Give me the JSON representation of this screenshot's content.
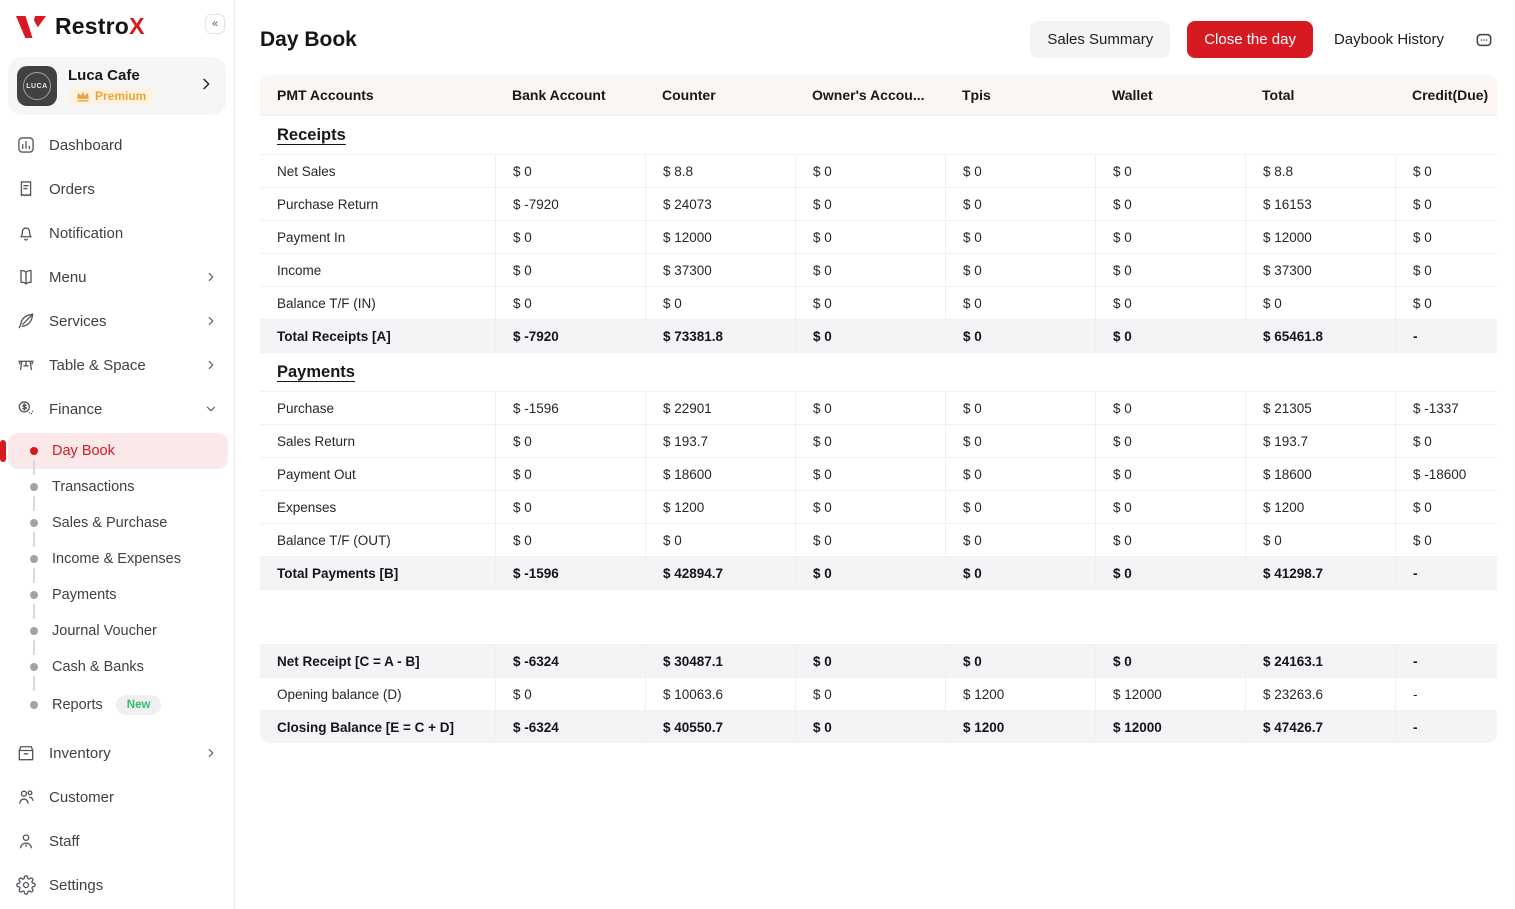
{
  "brand": {
    "name_primary": "Restro",
    "name_accent": "X"
  },
  "colors": {
    "accent": "#d71a21",
    "active_bg": "#fbe8e8",
    "premium": "#f0a23a",
    "total_row_bg": "#f4f4f6",
    "header_row_bg": "#fbf5f4",
    "border": "#f0f0f1",
    "new_green": "#2ec06f"
  },
  "sidebar": {
    "collapse_icon": "«",
    "restaurant": {
      "name": "Luca Cafe",
      "plan": "Premium",
      "avatar_text": "LUCA"
    },
    "items": [
      {
        "label": "Dashboard",
        "icon": "dashboard-icon"
      },
      {
        "label": "Orders",
        "icon": "orders-icon"
      },
      {
        "label": "Notification",
        "icon": "bell-icon"
      },
      {
        "label": "Menu",
        "icon": "menu-book-icon",
        "chevron": "right"
      },
      {
        "label": "Services",
        "icon": "services-feather-icon",
        "chevron": "right"
      },
      {
        "label": "Table & Space",
        "icon": "table-space-icon",
        "chevron": "right"
      },
      {
        "label": "Finance",
        "icon": "finance-coin-icon",
        "chevron": "down"
      }
    ],
    "finance_submenu": [
      {
        "label": "Day Book",
        "active": true
      },
      {
        "label": "Transactions"
      },
      {
        "label": "Sales & Purchase"
      },
      {
        "label": "Income & Expenses"
      },
      {
        "label": "Payments"
      },
      {
        "label": "Journal Voucher"
      },
      {
        "label": "Cash & Banks"
      },
      {
        "label": "Reports",
        "badge": "New"
      }
    ],
    "items_bottom": [
      {
        "label": "Inventory",
        "icon": "inventory-box-icon",
        "chevron": "right"
      },
      {
        "label": "Customer",
        "icon": "customer-icon"
      },
      {
        "label": "Staff",
        "icon": "staff-icon"
      },
      {
        "label": "Settings",
        "icon": "settings-gear-icon"
      }
    ]
  },
  "header": {
    "title": "Day Book",
    "buttons": [
      {
        "label": "Sales Summary",
        "style": "secondary"
      },
      {
        "label": "Close the day",
        "style": "primary"
      },
      {
        "label": "Daybook History",
        "style": "ghost"
      }
    ],
    "more_icon": "ellipsis-box-icon"
  },
  "table": {
    "columns": [
      "PMT Accounts",
      "Bank Account",
      "Counter",
      "Owner's Accou...",
      "Tpis",
      "Wallet",
      "Total",
      "Credit(Due)"
    ],
    "sections": [
      {
        "title": "Receipts",
        "rows": [
          {
            "label": "Net Sales",
            "values": [
              "$ 0",
              "$ 8.8",
              "$ 0",
              "$ 0",
              "$ 0",
              "$ 8.8",
              "$ 0"
            ]
          },
          {
            "label": "Purchase Return",
            "values": [
              "$ -7920",
              "$ 24073",
              "$ 0",
              "$ 0",
              "$ 0",
              "$ 16153",
              "$ 0"
            ]
          },
          {
            "label": "Payment In",
            "values": [
              "$ 0",
              "$ 12000",
              "$ 0",
              "$ 0",
              "$ 0",
              "$ 12000",
              "$ 0"
            ]
          },
          {
            "label": "Income",
            "values": [
              "$ 0",
              "$ 37300",
              "$ 0",
              "$ 0",
              "$ 0",
              "$ 37300",
              "$ 0"
            ]
          },
          {
            "label": "Balance T/F (IN)",
            "values": [
              "$ 0",
              "$ 0",
              "$ 0",
              "$ 0",
              "$ 0",
              "$ 0",
              "$ 0"
            ]
          }
        ],
        "total": {
          "label": "Total Receipts [A]",
          "values": [
            "$ -7920",
            "$ 73381.8",
            "$ 0",
            "$ 0",
            "$ 0",
            "$ 65461.8",
            "-"
          ]
        }
      },
      {
        "title": "Payments",
        "rows": [
          {
            "label": "Purchase",
            "values": [
              "$ -1596",
              "$ 22901",
              "$ 0",
              "$ 0",
              "$ 0",
              "$ 21305",
              "$ -1337"
            ]
          },
          {
            "label": "Sales Return",
            "values": [
              "$ 0",
              "$ 193.7",
              "$ 0",
              "$ 0",
              "$ 0",
              "$ 193.7",
              "$ 0"
            ]
          },
          {
            "label": "Payment Out",
            "values": [
              "$ 0",
              "$ 18600",
              "$ 0",
              "$ 0",
              "$ 0",
              "$ 18600",
              "$ -18600"
            ]
          },
          {
            "label": "Expenses",
            "values": [
              "$ 0",
              "$ 1200",
              "$ 0",
              "$ 0",
              "$ 0",
              "$ 1200",
              "$ 0"
            ]
          },
          {
            "label": "Balance T/F (OUT)",
            "values": [
              "$ 0",
              "$ 0",
              "$ 0",
              "$ 0",
              "$ 0",
              "$ 0",
              "$ 0"
            ]
          }
        ],
        "total": {
          "label": "Total Payments [B]",
          "values": [
            "$ -1596",
            "$ 42894.7",
            "$ 0",
            "$ 0",
            "$ 0",
            "$ 41298.7",
            "-"
          ]
        }
      }
    ],
    "summary": [
      {
        "label": "Net Receipt [C = A - B]",
        "values": [
          "$ -6324",
          "$ 30487.1",
          "$ 0",
          "$ 0",
          "$ 0",
          "$ 24163.1",
          "-"
        ],
        "emphasis": true
      },
      {
        "label": "Opening balance (D)",
        "values": [
          "$ 0",
          "$ 10063.6",
          "$ 0",
          "$ 1200",
          "$ 12000",
          "$ 23263.6",
          "-"
        ],
        "emphasis": false
      },
      {
        "label": "Closing Balance [E = C + D]",
        "values": [
          "$ -6324",
          "$ 40550.7",
          "$ 0",
          "$ 1200",
          "$ 12000",
          "$ 47426.7",
          "-"
        ],
        "emphasis": true
      }
    ]
  }
}
